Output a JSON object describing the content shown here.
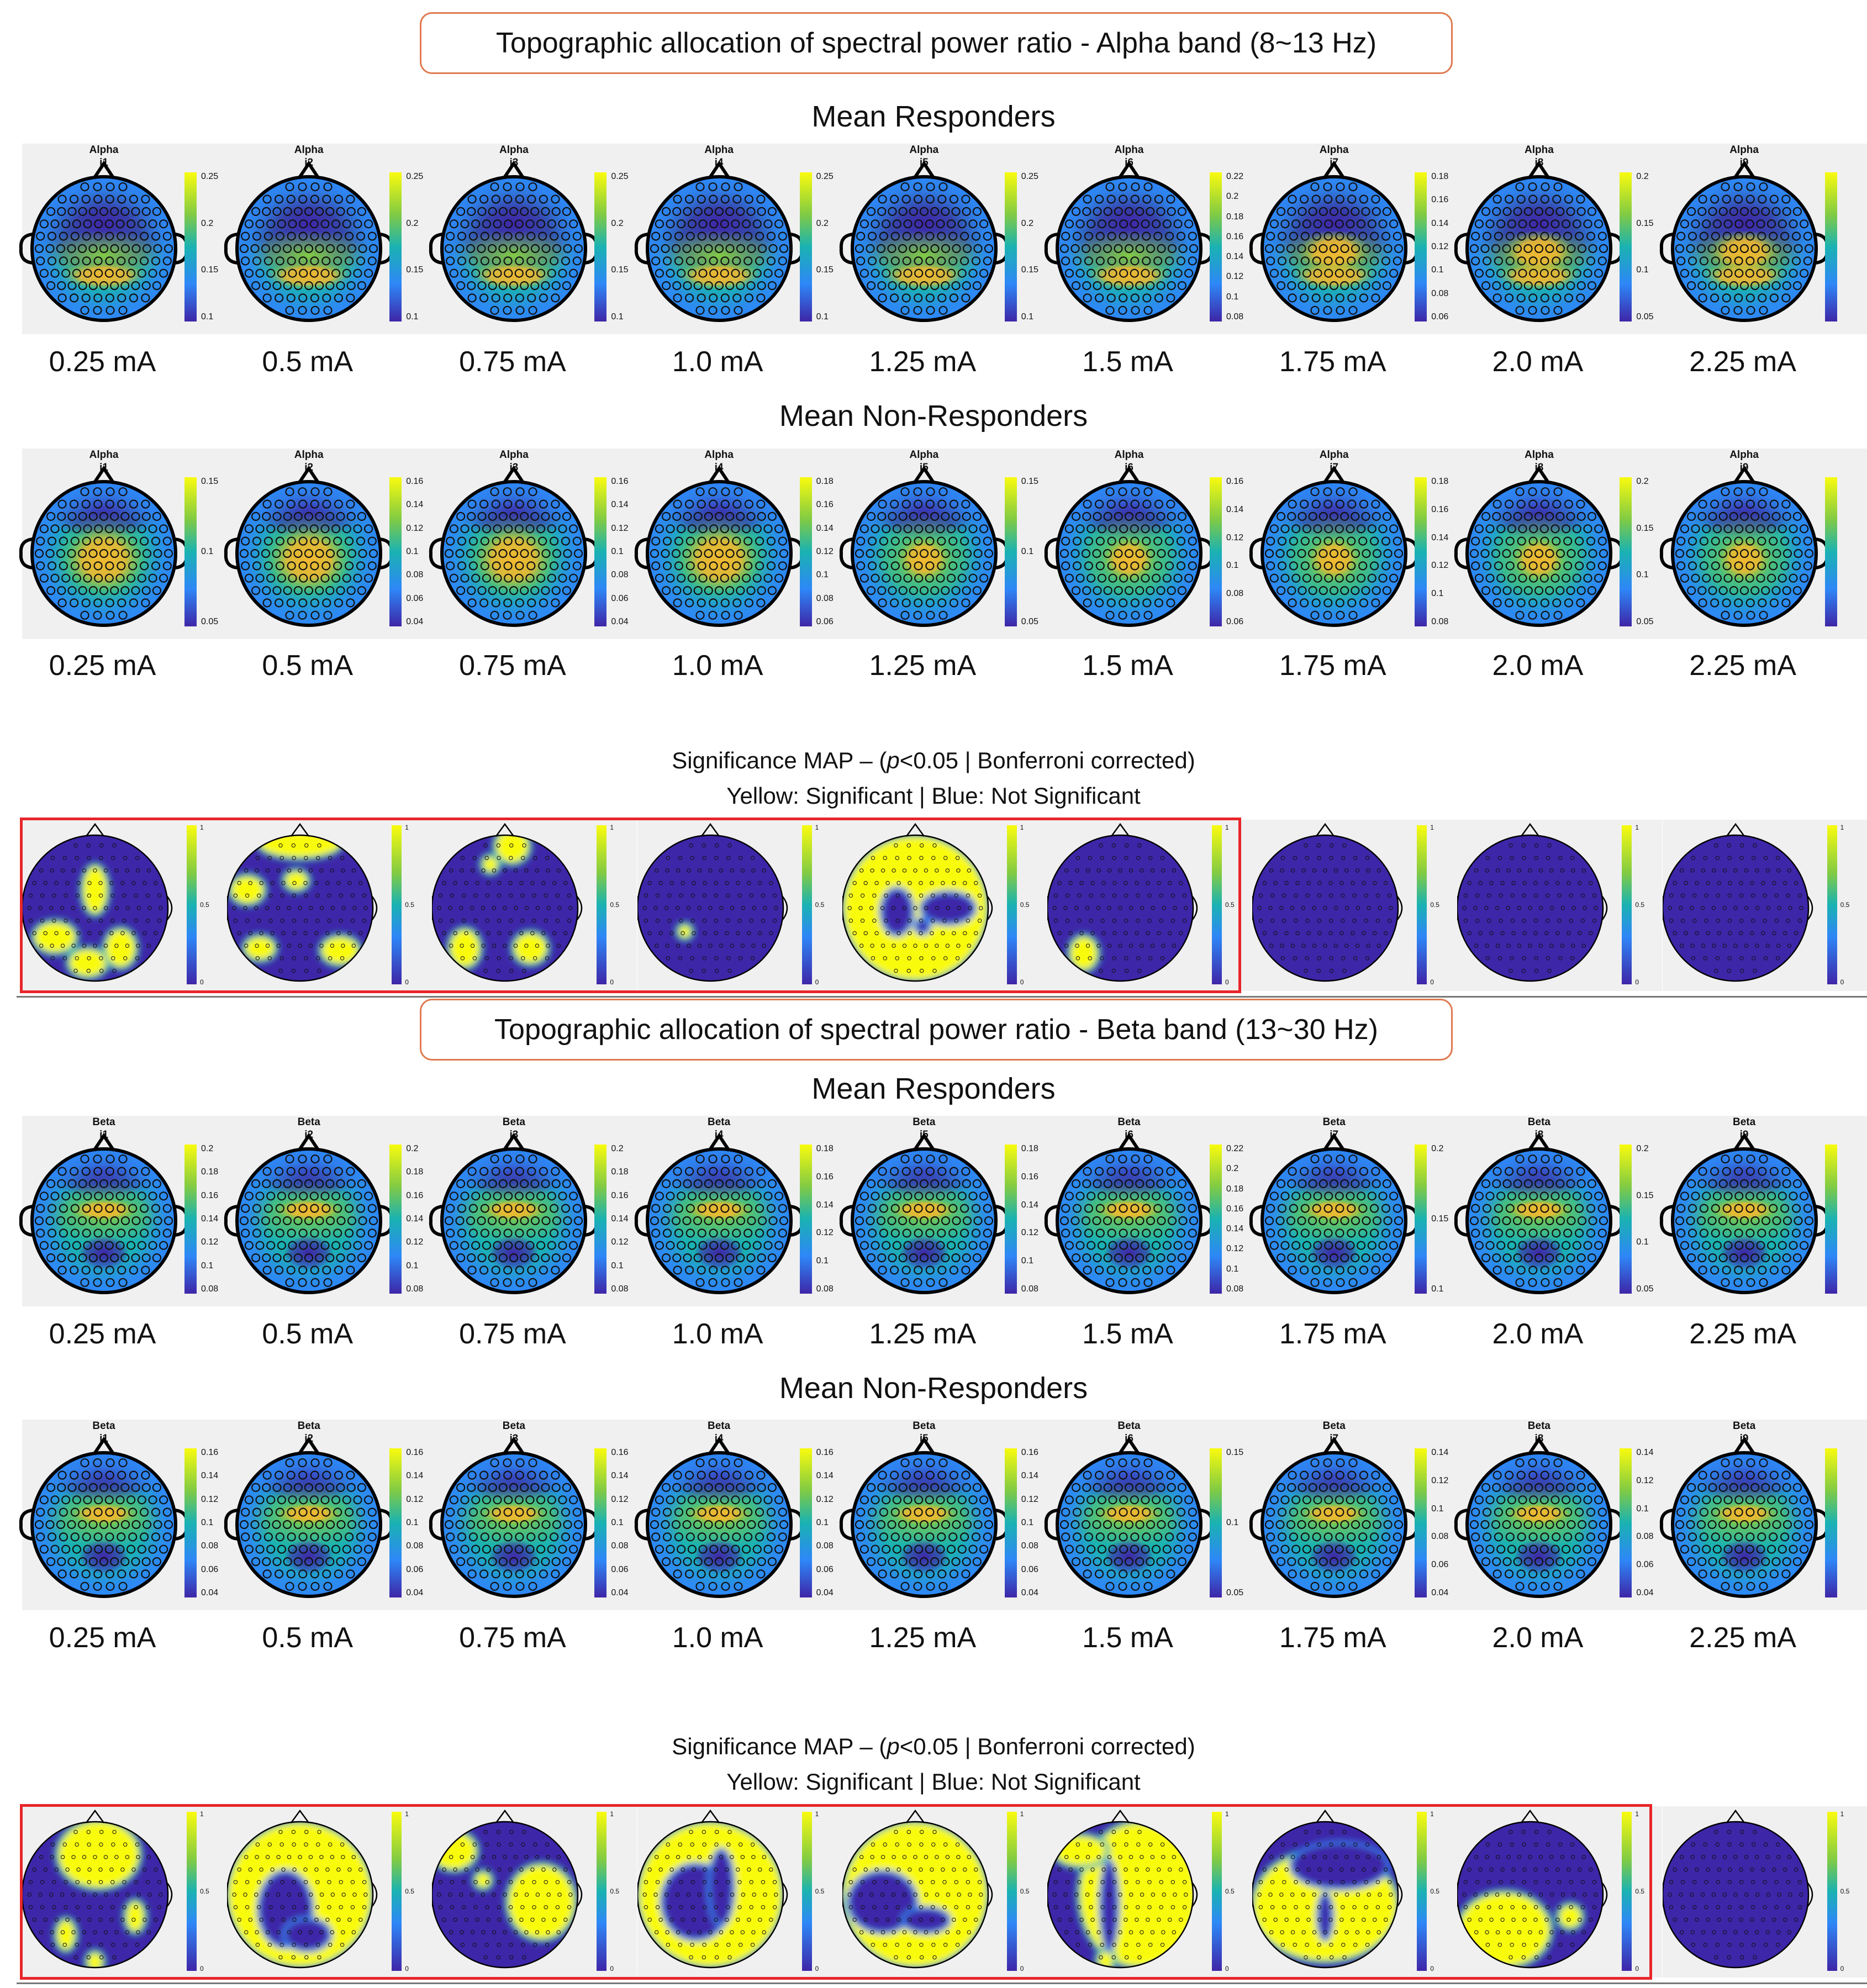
{
  "figure": {
    "amp_labels": [
      "0.25 mA",
      "0.5 mA",
      "0.75 mA",
      "1.0 mA",
      "1.25 mA",
      "1.5 mA",
      "1.75 mA",
      "2.0 mA",
      "2.25 mA"
    ],
    "significance_title": "Significance MAP – (p<0.05 | Bonferroni corrected)",
    "significance_title_parts": {
      "pre": "Significance MAP – (",
      "p": "p",
      "post": "<0.05 | Bonferroni corrected)"
    },
    "significance_legend": "Yellow: Significant | Blue: Not Significant",
    "significance_ticks": [
      "1",
      "0.5",
      "0"
    ]
  },
  "alpha": {
    "title": "Topographic allocation of spectral power ratio - Alpha band (8~13 Hz)",
    "responders": {
      "heading": "Mean Responders",
      "maps": [
        {
          "band": "Alpha",
          "id": "i1",
          "ticks": [
            "0.25",
            "0.2",
            "0.15",
            "0.1"
          ]
        },
        {
          "band": "Alpha",
          "id": "i2",
          "ticks": [
            "0.25",
            "0.2",
            "0.15",
            "0.1"
          ]
        },
        {
          "band": "Alpha",
          "id": "i3",
          "ticks": [
            "0.25",
            "0.2",
            "0.15",
            "0.1"
          ]
        },
        {
          "band": "Alpha",
          "id": "i4",
          "ticks": [
            "0.25",
            "0.2",
            "0.15",
            "0.1"
          ]
        },
        {
          "band": "Alpha",
          "id": "i5",
          "ticks": [
            "0.25",
            "0.2",
            "0.15",
            "0.1"
          ]
        },
        {
          "band": "Alpha",
          "id": "i6",
          "ticks": [
            "0.22",
            "0.2",
            "0.18",
            "0.16",
            "0.14",
            "0.12",
            "0.1",
            "0.08"
          ]
        },
        {
          "band": "Alpha",
          "id": "i7",
          "ticks": [
            "0.18",
            "0.16",
            "0.14",
            "0.12",
            "0.1",
            "0.08",
            "0.06"
          ]
        },
        {
          "band": "Alpha",
          "id": "i8",
          "ticks": [
            "0.2",
            "0.15",
            "0.1",
            "0.05"
          ]
        },
        {
          "band": "Alpha",
          "id": "i9",
          "ticks": []
        }
      ]
    },
    "non_responders": {
      "heading": "Mean Non-Responders",
      "maps": [
        {
          "band": "Alpha",
          "id": "i1",
          "ticks": [
            "0.15",
            "0.1",
            "0.05"
          ]
        },
        {
          "band": "Alpha",
          "id": "i2",
          "ticks": [
            "0.16",
            "0.14",
            "0.12",
            "0.1",
            "0.08",
            "0.06",
            "0.04"
          ]
        },
        {
          "band": "Alpha",
          "id": "i3",
          "ticks": [
            "0.16",
            "0.14",
            "0.12",
            "0.1",
            "0.08",
            "0.06",
            "0.04"
          ]
        },
        {
          "band": "Alpha",
          "id": "i4",
          "ticks": [
            "0.18",
            "0.16",
            "0.14",
            "0.12",
            "0.1",
            "0.08",
            "0.06"
          ]
        },
        {
          "band": "Alpha",
          "id": "i5",
          "ticks": [
            "0.15",
            "0.1",
            "0.05"
          ]
        },
        {
          "band": "Alpha",
          "id": "i6",
          "ticks": [
            "0.16",
            "0.14",
            "0.12",
            "0.1",
            "0.08",
            "0.06"
          ]
        },
        {
          "band": "Alpha",
          "id": "i7",
          "ticks": [
            "0.18",
            "0.16",
            "0.14",
            "0.12",
            "0.1",
            "0.08"
          ]
        },
        {
          "band": "Alpha",
          "id": "i8",
          "ticks": [
            "0.2",
            "0.15",
            "0.1",
            "0.05"
          ]
        },
        {
          "band": "Alpha",
          "id": "i9",
          "ticks": []
        }
      ]
    },
    "significant_count": 6
  },
  "beta": {
    "title": "Topographic allocation of spectral power ratio - Beta band (13~30 Hz)",
    "responders": {
      "heading": "Mean Responders",
      "maps": [
        {
          "band": "Beta",
          "id": "i1",
          "ticks": [
            "0.2",
            "0.18",
            "0.16",
            "0.14",
            "0.12",
            "0.1",
            "0.08"
          ]
        },
        {
          "band": "Beta",
          "id": "i2",
          "ticks": [
            "0.2",
            "0.18",
            "0.16",
            "0.14",
            "0.12",
            "0.1",
            "0.08"
          ]
        },
        {
          "band": "Beta",
          "id": "i3",
          "ticks": [
            "0.2",
            "0.18",
            "0.16",
            "0.14",
            "0.12",
            "0.1",
            "0.08"
          ]
        },
        {
          "band": "Beta",
          "id": "i4",
          "ticks": [
            "0.18",
            "0.16",
            "0.14",
            "0.12",
            "0.1",
            "0.08"
          ]
        },
        {
          "band": "Beta",
          "id": "i5",
          "ticks": [
            "0.18",
            "0.16",
            "0.14",
            "0.12",
            "0.1",
            "0.08"
          ]
        },
        {
          "band": "Beta",
          "id": "i6",
          "ticks": [
            "0.22",
            "0.2",
            "0.18",
            "0.16",
            "0.14",
            "0.12",
            "0.1",
            "0.08"
          ]
        },
        {
          "band": "Beta",
          "id": "i7",
          "ticks": [
            "0.2",
            "0.15",
            "0.1"
          ]
        },
        {
          "band": "Beta",
          "id": "i8",
          "ticks": [
            "0.2",
            "0.15",
            "0.1",
            "0.05"
          ]
        },
        {
          "band": "Beta",
          "id": "i9",
          "ticks": []
        }
      ]
    },
    "non_responders": {
      "heading": "Mean Non-Responders",
      "maps": [
        {
          "band": "Beta",
          "id": "i1",
          "ticks": [
            "0.16",
            "0.14",
            "0.12",
            "0.1",
            "0.08",
            "0.06",
            "0.04"
          ]
        },
        {
          "band": "Beta",
          "id": "i2",
          "ticks": [
            "0.16",
            "0.14",
            "0.12",
            "0.1",
            "0.08",
            "0.06",
            "0.04"
          ]
        },
        {
          "band": "Beta",
          "id": "i3",
          "ticks": [
            "0.16",
            "0.14",
            "0.12",
            "0.1",
            "0.08",
            "0.06",
            "0.04"
          ]
        },
        {
          "band": "Beta",
          "id": "i4",
          "ticks": [
            "0.16",
            "0.14",
            "0.12",
            "0.1",
            "0.08",
            "0.06",
            "0.04"
          ]
        },
        {
          "band": "Beta",
          "id": "i5",
          "ticks": [
            "0.16",
            "0.14",
            "0.12",
            "0.1",
            "0.08",
            "0.06",
            "0.04"
          ]
        },
        {
          "band": "Beta",
          "id": "i6",
          "ticks": [
            "0.15",
            "0.1",
            "0.05"
          ]
        },
        {
          "band": "Beta",
          "id": "i7",
          "ticks": [
            "0.14",
            "0.12",
            "0.1",
            "0.08",
            "0.06",
            "0.04"
          ]
        },
        {
          "band": "Beta",
          "id": "i8",
          "ticks": [
            "0.14",
            "0.12",
            "0.1",
            "0.08",
            "0.06",
            "0.04"
          ]
        },
        {
          "band": "Beta",
          "id": "i9",
          "ticks": []
        }
      ]
    },
    "significant_count": 8
  },
  "colors": {
    "dark": "#3e26a8",
    "blue": "#2e87f7",
    "teal": "#1ab2b2",
    "green": "#82cb43",
    "yellow": "#f9fb0e",
    "orange": "#f0b830",
    "bg": "#f0f0f0",
    "banner_border": "#e07a50",
    "sig_box": "#e8262a"
  }
}
